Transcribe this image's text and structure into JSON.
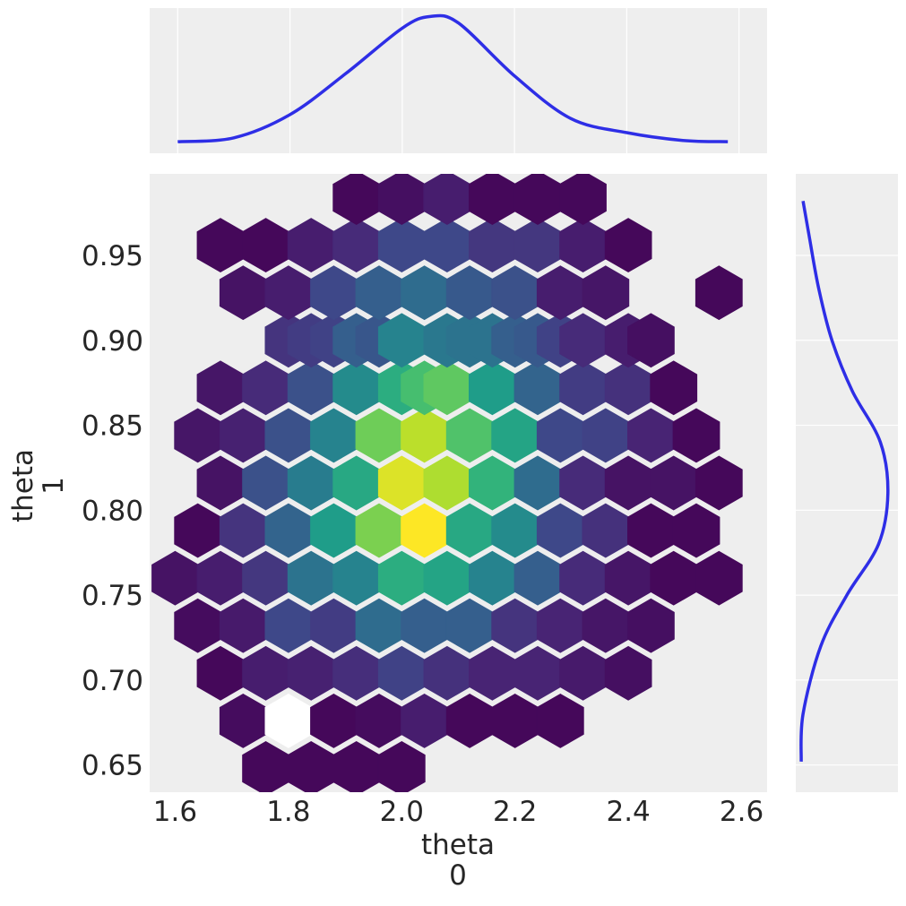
{
  "chart_data": {
    "type": "hexbin-joint",
    "main": {
      "xlabel": [
        "theta",
        "0"
      ],
      "ylabel": [
        "theta",
        "1"
      ],
      "xlim": [
        1.555,
        2.645
      ],
      "ylim": [
        0.634,
        0.998
      ],
      "xticks": [
        "1.6",
        "1.8",
        "2.0",
        "2.2",
        "2.4",
        "2.6"
      ],
      "yticks": [
        "0.65",
        "0.70",
        "0.75",
        "0.80",
        "0.85",
        "0.90",
        "0.95"
      ],
      "colormap": "viridis",
      "hex_columns": [
        {
          "x": 1.6,
          "rows": [
            {
              "y": 0.76,
              "level": 0.05
            }
          ]
        },
        {
          "x": 1.64,
          "rows": [
            {
              "y": 0.732,
              "level": 0.03
            },
            {
              "y": 0.788,
              "level": 0.02
            },
            {
              "y": 0.844,
              "level": 0.06
            }
          ]
        },
        {
          "x": 1.68,
          "rows": [
            {
              "y": 0.704,
              "level": 0.02
            },
            {
              "y": 0.76,
              "level": 0.08
            },
            {
              "y": 0.816,
              "level": 0.05
            },
            {
              "y": 0.872,
              "level": 0.06
            },
            {
              "y": 0.956,
              "level": 0.02
            }
          ]
        },
        {
          "x": 1.72,
          "rows": [
            {
              "y": 0.676,
              "level": 0.03
            },
            {
              "y": 0.732,
              "level": 0.07
            },
            {
              "y": 0.788,
              "level": 0.15
            },
            {
              "y": 0.844,
              "level": 0.09
            },
            {
              "y": 0.928,
              "level": 0.05
            }
          ]
        },
        {
          "x": 1.76,
          "rows": [
            {
              "y": 0.648,
              "level": 0.02
            },
            {
              "y": 0.704,
              "level": 0.08
            },
            {
              "y": 0.76,
              "level": 0.16
            },
            {
              "y": 0.816,
              "level": 0.25
            },
            {
              "y": 0.872,
              "level": 0.12
            },
            {
              "y": 0.956,
              "level": 0.02
            }
          ]
        },
        {
          "x": 1.8,
          "rows": [
            {
              "y": 0.676,
              "level": 0.0,
              "empty": true
            },
            {
              "y": 0.732,
              "level": 0.22
            },
            {
              "y": 0.788,
              "level": 0.32
            },
            {
              "y": 0.844,
              "level": 0.25
            },
            {
              "y": 0.9,
              "level": 0.15
            },
            {
              "y": 0.928,
              "level": 0.08
            }
          ]
        },
        {
          "x": 1.84,
          "rows": [
            {
              "y": 0.648,
              "level": 0.02
            },
            {
              "y": 0.704,
              "level": 0.09
            },
            {
              "y": 0.76,
              "level": 0.38
            },
            {
              "y": 0.816,
              "level": 0.42
            },
            {
              "y": 0.872,
              "level": 0.25
            },
            {
              "y": 0.9,
              "level": 0.18
            },
            {
              "y": 0.956,
              "level": 0.08
            }
          ]
        },
        {
          "x": 1.88,
          "rows": [
            {
              "y": 0.676,
              "level": 0.02
            },
            {
              "y": 0.732,
              "level": 0.18
            },
            {
              "y": 0.788,
              "level": 0.55
            },
            {
              "y": 0.844,
              "level": 0.45
            },
            {
              "y": 0.9,
              "level": 0.2
            },
            {
              "y": 0.928,
              "level": 0.22
            }
          ]
        },
        {
          "x": 1.92,
          "rows": [
            {
              "y": 0.648,
              "level": 0.02
            },
            {
              "y": 0.704,
              "level": 0.13
            },
            {
              "y": 0.76,
              "level": 0.45
            },
            {
              "y": 0.816,
              "level": 0.6
            },
            {
              "y": 0.872,
              "level": 0.48
            },
            {
              "y": 0.9,
              "level": 0.3
            },
            {
              "y": 0.956,
              "level": 0.12
            },
            {
              "y": 0.984,
              "level": 0.02
            }
          ]
        },
        {
          "x": 1.96,
          "rows": [
            {
              "y": 0.676,
              "level": 0.03
            },
            {
              "y": 0.732,
              "level": 0.35
            },
            {
              "y": 0.788,
              "level": 0.8
            },
            {
              "y": 0.844,
              "level": 0.78
            },
            {
              "y": 0.9,
              "level": 0.27
            },
            {
              "y": 0.928,
              "level": 0.3
            }
          ]
        },
        {
          "x": 2.0,
          "rows": [
            {
              "y": 0.648,
              "level": 0.02
            },
            {
              "y": 0.704,
              "level": 0.2
            },
            {
              "y": 0.76,
              "level": 0.62
            },
            {
              "y": 0.816,
              "level": 0.95
            },
            {
              "y": 0.872,
              "level": 0.62
            },
            {
              "y": 0.9,
              "level": 0.45
            },
            {
              "y": 0.956,
              "level": 0.22
            },
            {
              "y": 0.984,
              "level": 0.04
            }
          ]
        },
        {
          "x": 2.04,
          "rows": [
            {
              "y": 0.676,
              "level": 0.08
            },
            {
              "y": 0.732,
              "level": 0.3
            },
            {
              "y": 0.788,
              "level": 1.0
            },
            {
              "y": 0.844,
              "level": 0.9
            },
            {
              "y": 0.872,
              "level": 0.7
            },
            {
              "y": 0.928,
              "level": 0.35
            }
          ]
        },
        {
          "x": 2.08,
          "rows": [
            {
              "y": 0.704,
              "level": 0.14
            },
            {
              "y": 0.76,
              "level": 0.58
            },
            {
              "y": 0.816,
              "level": 0.88
            },
            {
              "y": 0.872,
              "level": 0.75
            },
            {
              "y": 0.9,
              "level": 0.4
            },
            {
              "y": 0.956,
              "level": 0.22
            },
            {
              "y": 0.984,
              "level": 0.08
            }
          ]
        },
        {
          "x": 2.12,
          "rows": [
            {
              "y": 0.676,
              "level": 0.02
            },
            {
              "y": 0.732,
              "level": 0.3
            },
            {
              "y": 0.788,
              "level": 0.6
            },
            {
              "y": 0.844,
              "level": 0.72
            },
            {
              "y": 0.9,
              "level": 0.38
            },
            {
              "y": 0.928,
              "level": 0.28
            }
          ]
        },
        {
          "x": 2.16,
          "rows": [
            {
              "y": 0.704,
              "level": 0.1
            },
            {
              "y": 0.76,
              "level": 0.45
            },
            {
              "y": 0.816,
              "level": 0.65
            },
            {
              "y": 0.872,
              "level": 0.55
            },
            {
              "y": 0.9,
              "level": 0.38
            },
            {
              "y": 0.956,
              "level": 0.16
            },
            {
              "y": 0.984,
              "level": 0.02
            }
          ]
        },
        {
          "x": 2.2,
          "rows": [
            {
              "y": 0.676,
              "level": 0.02
            },
            {
              "y": 0.732,
              "level": 0.15
            },
            {
              "y": 0.788,
              "level": 0.48
            },
            {
              "y": 0.844,
              "level": 0.58
            },
            {
              "y": 0.9,
              "level": 0.3
            },
            {
              "y": 0.928,
              "level": 0.25
            }
          ]
        },
        {
          "x": 2.24,
          "rows": [
            {
              "y": 0.704,
              "level": 0.1
            },
            {
              "y": 0.76,
              "level": 0.3
            },
            {
              "y": 0.816,
              "level": 0.35
            },
            {
              "y": 0.872,
              "level": 0.32
            },
            {
              "y": 0.9,
              "level": 0.28
            },
            {
              "y": 0.956,
              "level": 0.16
            },
            {
              "y": 0.984,
              "level": 0.02
            }
          ]
        },
        {
          "x": 2.28,
          "rows": [
            {
              "y": 0.676,
              "level": 0.02
            },
            {
              "y": 0.732,
              "level": 0.1
            },
            {
              "y": 0.788,
              "level": 0.22
            },
            {
              "y": 0.844,
              "level": 0.22
            },
            {
              "y": 0.9,
              "level": 0.2
            },
            {
              "y": 0.928,
              "level": 0.08
            }
          ]
        },
        {
          "x": 2.32,
          "rows": [
            {
              "y": 0.704,
              "level": 0.07
            },
            {
              "y": 0.76,
              "level": 0.12
            },
            {
              "y": 0.816,
              "level": 0.12
            },
            {
              "y": 0.872,
              "level": 0.18
            },
            {
              "y": 0.9,
              "level": 0.12
            },
            {
              "y": 0.956,
              "level": 0.08
            },
            {
              "y": 0.984,
              "level": 0.02
            }
          ]
        },
        {
          "x": 2.36,
          "rows": [
            {
              "y": 0.732,
              "level": 0.06
            },
            {
              "y": 0.788,
              "level": 0.14
            },
            {
              "y": 0.844,
              "level": 0.2
            },
            {
              "y": 0.928,
              "level": 0.06
            }
          ]
        },
        {
          "x": 2.4,
          "rows": [
            {
              "y": 0.704,
              "level": 0.04
            },
            {
              "y": 0.76,
              "level": 0.06
            },
            {
              "y": 0.816,
              "level": 0.05
            },
            {
              "y": 0.872,
              "level": 0.14
            },
            {
              "y": 0.9,
              "level": 0.08
            },
            {
              "y": 0.956,
              "level": 0.02
            }
          ]
        },
        {
          "x": 2.44,
          "rows": [
            {
              "y": 0.732,
              "level": 0.04
            },
            {
              "y": 0.788,
              "level": 0.02
            },
            {
              "y": 0.844,
              "level": 0.1
            },
            {
              "y": 0.9,
              "level": 0.04
            }
          ]
        },
        {
          "x": 2.48,
          "rows": [
            {
              "y": 0.76,
              "level": 0.02
            },
            {
              "y": 0.816,
              "level": 0.05
            },
            {
              "y": 0.872,
              "level": 0.02
            }
          ]
        },
        {
          "x": 2.52,
          "rows": [
            {
              "y": 0.788,
              "level": 0.02
            },
            {
              "y": 0.844,
              "level": 0.02
            }
          ]
        },
        {
          "x": 2.56,
          "rows": [
            {
              "y": 0.76,
              "level": 0.02
            },
            {
              "y": 0.816,
              "level": 0.02
            },
            {
              "y": 0.928,
              "level": 0.02
            }
          ]
        }
      ]
    },
    "top_marginal": {
      "type": "line",
      "xlim": [
        1.55,
        2.65
      ],
      "color": "#2e2ee6",
      "x": [
        1.6,
        1.7,
        1.8,
        1.9,
        2.0,
        2.05,
        2.1,
        2.2,
        2.3,
        2.4,
        2.5,
        2.58
      ],
      "y": [
        0.02,
        0.05,
        0.23,
        0.55,
        0.9,
        0.99,
        0.94,
        0.53,
        0.2,
        0.09,
        0.03,
        0.02
      ]
    },
    "right_marginal": {
      "type": "line",
      "ylim": [
        0.634,
        0.998
      ],
      "color": "#2e2ee6",
      "y": [
        0.652,
        0.68,
        0.72,
        0.75,
        0.78,
        0.81,
        0.84,
        0.87,
        0.9,
        0.93,
        0.96,
        0.982
      ],
      "density": [
        0.01,
        0.03,
        0.22,
        0.5,
        0.84,
        0.94,
        0.86,
        0.56,
        0.34,
        0.2,
        0.1,
        0.03
      ]
    }
  }
}
